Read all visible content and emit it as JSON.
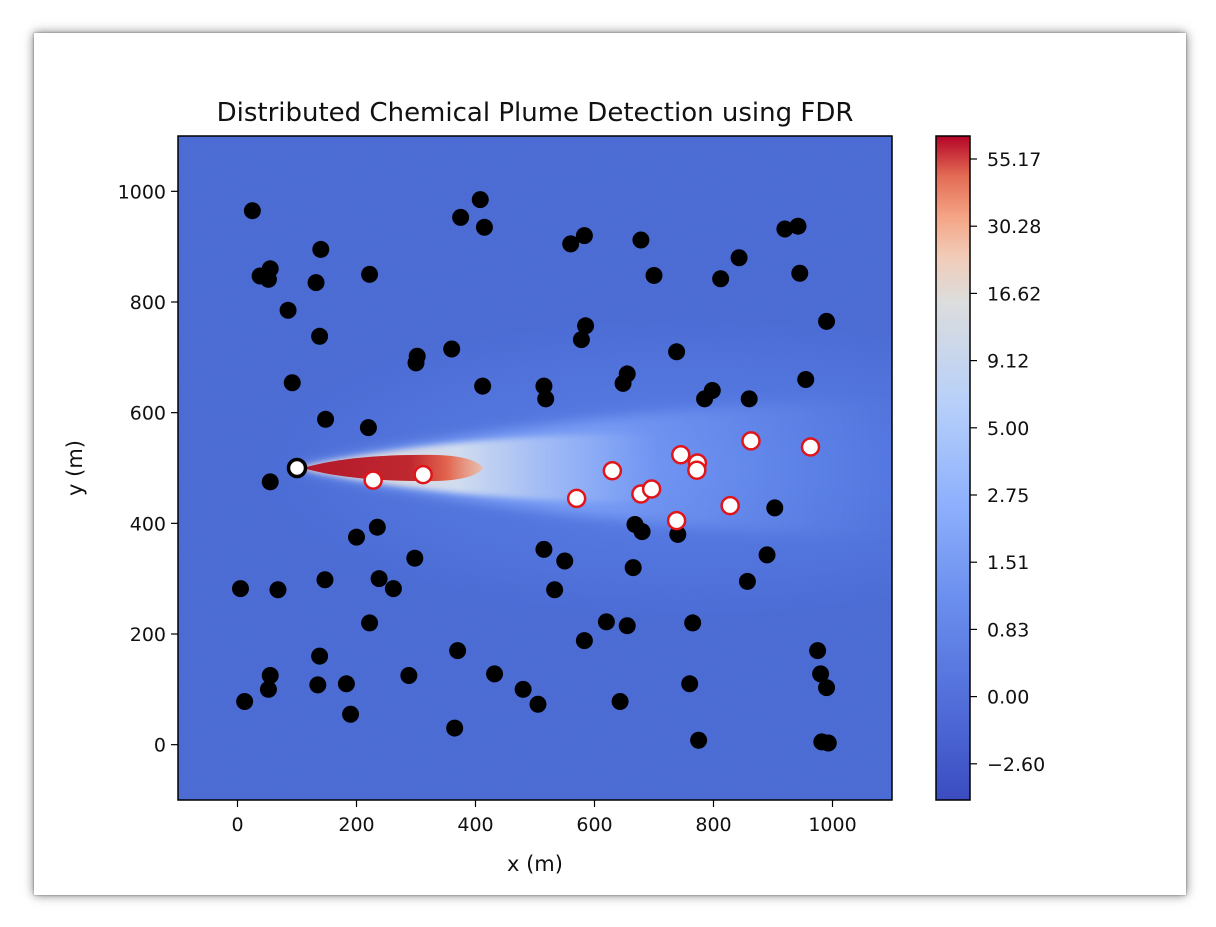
{
  "chart_data": {
    "type": "scatter",
    "title": "Distributed Chemical Plume Detection using FDR",
    "xlabel": "x (m)",
    "ylabel": "y (m)",
    "xlim": [
      -100,
      1100
    ],
    "ylim": [
      -100,
      1100
    ],
    "x_ticks": [
      "0",
      "200",
      "400",
      "600",
      "800",
      "1000"
    ],
    "y_ticks": [
      "0",
      "200",
      "400",
      "600",
      "800",
      "1000"
    ],
    "colorbar": {
      "colormap": "coolwarm",
      "tick_labels": [
        "55.17",
        "30.28",
        "16.62",
        "9.12",
        "5.00",
        "2.75",
        "1.51",
        "0.83",
        "0.00",
        "−2.60"
      ]
    },
    "background_color": "#4a6bd6",
    "plume_color": "#b2182b",
    "source": {
      "x": 100,
      "y": 500
    },
    "detected_sensors": {
      "fill": "#ffffff",
      "edge": "#e0151a",
      "points": [
        [
          228,
          478
        ],
        [
          312,
          488
        ],
        [
          570,
          445
        ],
        [
          630,
          495
        ],
        [
          678,
          453
        ],
        [
          696,
          462
        ],
        [
          738,
          405
        ],
        [
          745,
          524
        ],
        [
          773,
          509
        ],
        [
          772,
          496
        ],
        [
          828,
          432
        ],
        [
          863,
          549
        ],
        [
          963,
          538
        ]
      ]
    },
    "undetected_sensors": {
      "fill": "#000000",
      "points": [
        [
          25,
          965
        ],
        [
          38,
          847
        ],
        [
          52,
          841
        ],
        [
          55,
          860
        ],
        [
          132,
          835
        ],
        [
          140,
          895
        ],
        [
          222,
          850
        ],
        [
          85,
          785
        ],
        [
          138,
          738
        ],
        [
          92,
          654
        ],
        [
          148,
          588
        ],
        [
          220,
          573
        ],
        [
          55,
          475
        ],
        [
          300,
          690
        ],
        [
          302,
          702
        ],
        [
          360,
          715
        ],
        [
          375,
          953
        ],
        [
          408,
          985
        ],
        [
          415,
          935
        ],
        [
          412,
          648
        ],
        [
          560,
          905
        ],
        [
          583,
          920
        ],
        [
          578,
          732
        ],
        [
          585,
          757
        ],
        [
          515,
          648
        ],
        [
          518,
          625
        ],
        [
          648,
          653
        ],
        [
          655,
          670
        ],
        [
          678,
          912
        ],
        [
          700,
          848
        ],
        [
          738,
          710
        ],
        [
          785,
          625
        ],
        [
          798,
          640
        ],
        [
          812,
          842
        ],
        [
          843,
          880
        ],
        [
          860,
          625
        ],
        [
          920,
          932
        ],
        [
          942,
          937
        ],
        [
          945,
          852
        ],
        [
          955,
          660
        ],
        [
          990,
          765
        ],
        [
          5,
          282
        ],
        [
          68,
          280
        ],
        [
          147,
          298
        ],
        [
          200,
          375
        ],
        [
          235,
          393
        ],
        [
          238,
          300
        ],
        [
          262,
          282
        ],
        [
          298,
          337
        ],
        [
          222,
          220
        ],
        [
          138,
          160
        ],
        [
          135,
          108
        ],
        [
          183,
          110
        ],
        [
          52,
          100
        ],
        [
          55,
          125
        ],
        [
          12,
          78
        ],
        [
          190,
          55
        ],
        [
          288,
          125
        ],
        [
          365,
          30
        ],
        [
          370,
          170
        ],
        [
          432,
          128
        ],
        [
          480,
          100
        ],
        [
          505,
          73
        ],
        [
          515,
          353
        ],
        [
          533,
          280
        ],
        [
          550,
          332
        ],
        [
          583,
          188
        ],
        [
          620,
          222
        ],
        [
          655,
          215
        ],
        [
          643,
          78
        ],
        [
          665,
          320
        ],
        [
          668,
          398
        ],
        [
          680,
          385
        ],
        [
          740,
          380
        ],
        [
          760,
          110
        ],
        [
          765,
          220
        ],
        [
          775,
          8
        ],
        [
          857,
          295
        ],
        [
          890,
          343
        ],
        [
          903,
          428
        ],
        [
          975,
          170
        ],
        [
          980,
          128
        ],
        [
          990,
          103
        ],
        [
          982,
          5
        ],
        [
          993,
          3
        ]
      ]
    }
  }
}
